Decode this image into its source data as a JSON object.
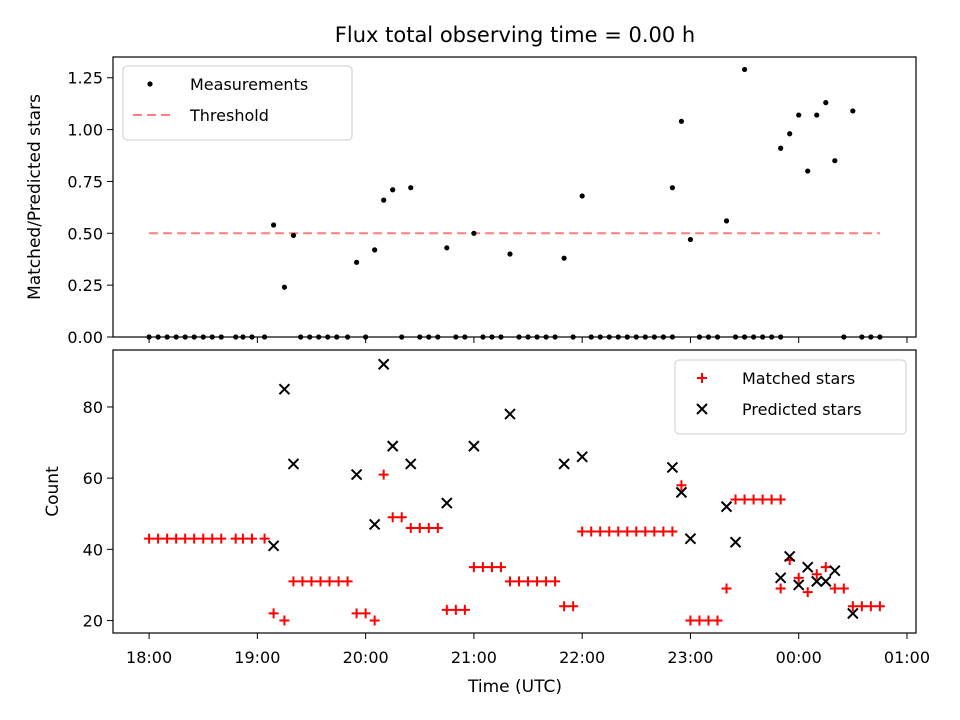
{
  "figure": {
    "title": "Flux total observing time = 0.00 h",
    "xlabel": "Time (UTC)"
  },
  "chart_data": [
    {
      "type": "scatter",
      "ylabel": "Matched/Predicted stars",
      "ylim": [
        0,
        1.35
      ],
      "xlim": [
        "17:40",
        "01:05"
      ],
      "yticks": [
        "0.00",
        "0.25",
        "0.50",
        "0.75",
        "1.00",
        "1.25"
      ],
      "ytick_values": [
        0,
        0.25,
        0.5,
        0.75,
        1.0,
        1.25
      ],
      "legend_position": "upper left",
      "legend": [
        "Measurements",
        "Threshold"
      ],
      "threshold": {
        "name": "Threshold",
        "y": 0.5,
        "x_start": "18:00",
        "x_end": "00:45",
        "color": "#ff7f7f",
        "style": "dashed"
      },
      "series": [
        {
          "name": "Measurements",
          "color": "#000000",
          "marker": "dot",
          "points": [
            [
              "18:00",
              0
            ],
            [
              "18:05",
              0
            ],
            [
              "18:10",
              0
            ],
            [
              "18:15",
              0
            ],
            [
              "18:20",
              0
            ],
            [
              "18:25",
              0
            ],
            [
              "18:30",
              0
            ],
            [
              "18:35",
              0
            ],
            [
              "18:40",
              0
            ],
            [
              "18:48",
              0
            ],
            [
              "18:52",
              0
            ],
            [
              "18:57",
              0
            ],
            [
              "19:04",
              0
            ],
            [
              "19:09",
              0.54
            ],
            [
              "19:15",
              0.24
            ],
            [
              "19:20",
              0.49
            ],
            [
              "19:24",
              0
            ],
            [
              "19:29",
              0
            ],
            [
              "19:34",
              0
            ],
            [
              "19:39",
              0
            ],
            [
              "19:44",
              0
            ],
            [
              "19:50",
              0
            ],
            [
              "19:55",
              0.36
            ],
            [
              "20:00",
              0
            ],
            [
              "20:05",
              0.42
            ],
            [
              "20:10",
              0.66
            ],
            [
              "20:15",
              0.71
            ],
            [
              "20:20",
              0
            ],
            [
              "20:25",
              0.72
            ],
            [
              "20:30",
              0
            ],
            [
              "20:35",
              0
            ],
            [
              "20:40",
              0
            ],
            [
              "20:45",
              0.43
            ],
            [
              "20:50",
              0
            ],
            [
              "20:55",
              0
            ],
            [
              "21:00",
              0.5
            ],
            [
              "21:05",
              0
            ],
            [
              "21:10",
              0
            ],
            [
              "21:15",
              0
            ],
            [
              "21:20",
              0.4
            ],
            [
              "21:25",
              0
            ],
            [
              "21:30",
              0
            ],
            [
              "21:35",
              0
            ],
            [
              "21:40",
              0
            ],
            [
              "21:45",
              0
            ],
            [
              "21:50",
              0.38
            ],
            [
              "21:55",
              0
            ],
            [
              "22:00",
              0.68
            ],
            [
              "22:05",
              0
            ],
            [
              "22:10",
              0
            ],
            [
              "22:15",
              0
            ],
            [
              "22:20",
              0
            ],
            [
              "22:25",
              0
            ],
            [
              "22:30",
              0
            ],
            [
              "22:35",
              0
            ],
            [
              "22:40",
              0
            ],
            [
              "22:45",
              0
            ],
            [
              "22:50",
              0
            ],
            [
              "22:50",
              0.72
            ],
            [
              "22:55",
              1.04
            ],
            [
              "23:00",
              0.47
            ],
            [
              "23:05",
              0
            ],
            [
              "23:10",
              0
            ],
            [
              "23:15",
              0
            ],
            [
              "23:20",
              0.56
            ],
            [
              "23:25",
              0
            ],
            [
              "23:30",
              0
            ],
            [
              "23:35",
              0
            ],
            [
              "23:40",
              0
            ],
            [
              "23:45",
              0
            ],
            [
              "23:50",
              0
            ],
            [
              "23:50",
              0.91
            ],
            [
              "23:55",
              0.98
            ],
            [
              "00:00",
              1.07
            ],
            [
              "00:05",
              0.8
            ],
            [
              "00:10",
              1.07
            ],
            [
              "00:15",
              1.13
            ],
            [
              "00:20",
              0.85
            ],
            [
              "00:25",
              0
            ],
            [
              "00:30",
              1.09
            ],
            [
              "00:35",
              0
            ],
            [
              "00:40",
              0
            ],
            [
              "00:45",
              0
            ],
            [
              "23:30",
              1.29
            ]
          ]
        }
      ]
    },
    {
      "type": "scatter",
      "ylabel": "Count",
      "ylim": [
        16.5,
        96
      ],
      "xlim": [
        "17:40",
        "01:05"
      ],
      "yticks": [
        "20",
        "40",
        "60",
        "80"
      ],
      "ytick_values": [
        20,
        40,
        60,
        80
      ],
      "xticks": [
        "18:00",
        "19:00",
        "20:00",
        "21:00",
        "22:00",
        "23:00",
        "00:00",
        "01:00"
      ],
      "legend_position": "upper right",
      "legend": [
        "Matched stars",
        "Predicted stars"
      ],
      "series": [
        {
          "name": "Matched stars",
          "color": "#ff0000",
          "marker": "plus",
          "points": [
            [
              "18:00",
              43
            ],
            [
              "18:05",
              43
            ],
            [
              "18:10",
              43
            ],
            [
              "18:15",
              43
            ],
            [
              "18:20",
              43
            ],
            [
              "18:25",
              43
            ],
            [
              "18:30",
              43
            ],
            [
              "18:35",
              43
            ],
            [
              "18:40",
              43
            ],
            [
              "18:48",
              43
            ],
            [
              "18:52",
              43
            ],
            [
              "18:57",
              43
            ],
            [
              "19:04",
              43
            ],
            [
              "19:09",
              22
            ],
            [
              "19:15",
              20
            ],
            [
              "19:20",
              31
            ],
            [
              "19:25",
              31
            ],
            [
              "19:30",
              31
            ],
            [
              "19:35",
              31
            ],
            [
              "19:40",
              31
            ],
            [
              "19:45",
              31
            ],
            [
              "19:50",
              31
            ],
            [
              "19:55",
              22
            ],
            [
              "20:00",
              22
            ],
            [
              "20:05",
              20
            ],
            [
              "20:10",
              61
            ],
            [
              "20:15",
              49
            ],
            [
              "20:20",
              49
            ],
            [
              "20:25",
              46
            ],
            [
              "20:30",
              46
            ],
            [
              "20:35",
              46
            ],
            [
              "20:40",
              46
            ],
            [
              "20:45",
              23
            ],
            [
              "20:50",
              23
            ],
            [
              "20:55",
              23
            ],
            [
              "21:00",
              35
            ],
            [
              "21:05",
              35
            ],
            [
              "21:10",
              35
            ],
            [
              "21:15",
              35
            ],
            [
              "21:20",
              31
            ],
            [
              "21:25",
              31
            ],
            [
              "21:30",
              31
            ],
            [
              "21:35",
              31
            ],
            [
              "21:40",
              31
            ],
            [
              "21:45",
              31
            ],
            [
              "21:50",
              24
            ],
            [
              "21:55",
              24
            ],
            [
              "22:00",
              45
            ],
            [
              "22:05",
              45
            ],
            [
              "22:10",
              45
            ],
            [
              "22:15",
              45
            ],
            [
              "22:20",
              45
            ],
            [
              "22:25",
              45
            ],
            [
              "22:30",
              45
            ],
            [
              "22:35",
              45
            ],
            [
              "22:40",
              45
            ],
            [
              "22:45",
              45
            ],
            [
              "22:50",
              45
            ],
            [
              "22:55",
              58
            ],
            [
              "23:00",
              20
            ],
            [
              "23:05",
              20
            ],
            [
              "23:10",
              20
            ],
            [
              "23:15",
              20
            ],
            [
              "23:20",
              29
            ],
            [
              "23:25",
              54
            ],
            [
              "23:30",
              54
            ],
            [
              "23:35",
              54
            ],
            [
              "23:40",
              54
            ],
            [
              "23:45",
              54
            ],
            [
              "23:50",
              54
            ],
            [
              "23:50",
              29
            ],
            [
              "23:55",
              37
            ],
            [
              "00:00",
              32
            ],
            [
              "00:05",
              28
            ],
            [
              "00:10",
              33
            ],
            [
              "00:15",
              35
            ],
            [
              "00:20",
              29
            ],
            [
              "00:25",
              29
            ],
            [
              "00:30",
              24
            ],
            [
              "00:35",
              24
            ],
            [
              "00:40",
              24
            ],
            [
              "00:45",
              24
            ]
          ]
        },
        {
          "name": "Predicted stars",
          "color": "#000000",
          "marker": "x",
          "points": [
            [
              "19:09",
              41
            ],
            [
              "19:15",
              85
            ],
            [
              "19:20",
              64
            ],
            [
              "19:55",
              61
            ],
            [
              "20:05",
              47
            ],
            [
              "20:10",
              92
            ],
            [
              "20:15",
              69
            ],
            [
              "20:25",
              64
            ],
            [
              "20:45",
              53
            ],
            [
              "21:00",
              69
            ],
            [
              "21:20",
              78
            ],
            [
              "21:50",
              64
            ],
            [
              "22:00",
              66
            ],
            [
              "22:50",
              63
            ],
            [
              "22:55",
              56
            ],
            [
              "23:00",
              43
            ],
            [
              "23:20",
              52
            ],
            [
              "23:25",
              42
            ],
            [
              "23:50",
              32
            ],
            [
              "23:55",
              38
            ],
            [
              "00:00",
              30
            ],
            [
              "00:05",
              35
            ],
            [
              "00:10",
              31
            ],
            [
              "00:15",
              31
            ],
            [
              "00:20",
              34
            ],
            [
              "00:30",
              22
            ]
          ]
        }
      ]
    }
  ]
}
